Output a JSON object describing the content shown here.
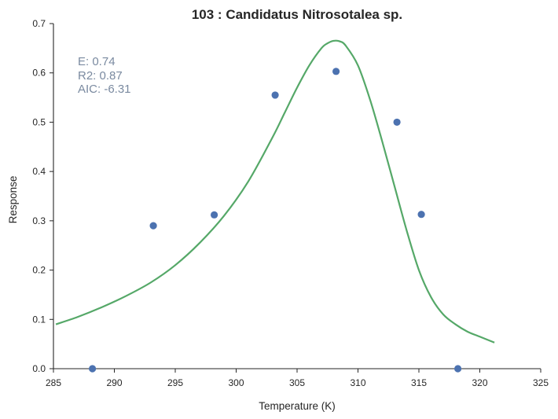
{
  "chart_data": {
    "type": "scatter",
    "title": "103 : Candidatus Nitrosotalea sp.",
    "xlabel": "Temperature (K)",
    "ylabel": "Response",
    "xlim": [
      285,
      325
    ],
    "ylim": [
      0.0,
      0.7
    ],
    "x_ticks": [
      "285",
      "290",
      "295",
      "300",
      "305",
      "310",
      "315",
      "320",
      "325"
    ],
    "y_ticks": [
      "0.0",
      "0.1",
      "0.2",
      "0.3",
      "0.4",
      "0.5",
      "0.6",
      "0.7"
    ],
    "grid": false,
    "points": {
      "color": "#4c72b0",
      "x": [
        288.2,
        293.2,
        298.2,
        303.2,
        308.2,
        313.2,
        315.2,
        318.2
      ],
      "y": [
        0.0,
        0.29,
        0.312,
        0.555,
        0.603,
        0.5,
        0.313,
        0.0
      ]
    },
    "fit": {
      "color": "#55a868",
      "x": [
        285.2,
        287,
        289,
        291,
        293,
        295,
        297,
        299,
        301,
        303,
        304,
        305,
        306,
        307,
        307.5,
        308,
        308.5,
        309,
        310,
        311,
        312,
        313,
        314,
        315,
        316,
        317,
        318,
        319,
        320,
        321.2
      ],
      "y": [
        0.09,
        0.105,
        0.125,
        0.148,
        0.175,
        0.21,
        0.255,
        0.31,
        0.38,
        0.47,
        0.52,
        0.57,
        0.615,
        0.65,
        0.66,
        0.665,
        0.664,
        0.655,
        0.615,
        0.545,
        0.46,
        0.37,
        0.28,
        0.2,
        0.145,
        0.11,
        0.09,
        0.075,
        0.065,
        0.053
      ]
    },
    "annotations": [
      "E:  0.74",
      "R2:  0.87",
      "AIC: -6.31"
    ]
  }
}
